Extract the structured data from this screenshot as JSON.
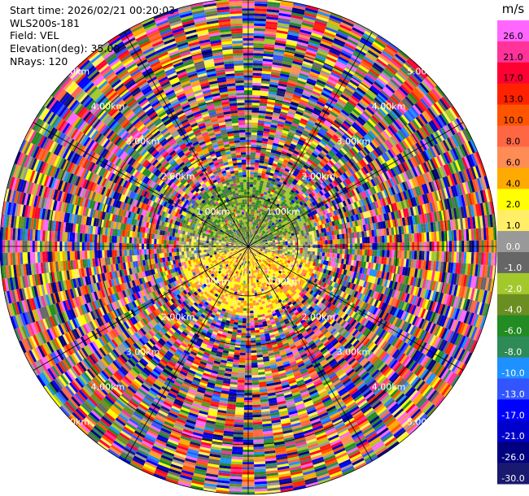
{
  "header": {
    "start_time": "Start time: 2026/02/21 00:20:03",
    "instrument": "WLS200s-181",
    "field": "Field: VEL",
    "elevation": "Elevation(deg): 35.00",
    "nrays": "NRays: 120"
  },
  "chart_data": {
    "type": "ppi",
    "title": "",
    "field": "VEL",
    "unit": "m/s",
    "nrays": 120,
    "elevation_deg": 35.0,
    "max_range_km": 5.0,
    "range_ring_labels": [
      "1.00km",
      "2.00km",
      "3.00km",
      "4.00km",
      "5.00km"
    ],
    "range_rings_km": [
      1,
      2,
      3,
      4,
      5
    ],
    "colorbar": {
      "label": "m/s",
      "ticks": [
        "26.0",
        "21.0",
        "17.0",
        "13.0",
        "10.0",
        "8.0",
        "6.0",
        "4.0",
        "2.0",
        "1.0",
        "0.0",
        "-1.0",
        "-2.0",
        "-4.0",
        "-6.0",
        "-8.0",
        "-10.0",
        "-13.0",
        "-17.0",
        "-21.0",
        "-26.0",
        "-30.0"
      ],
      "colors": [
        "#ff66ff",
        "#ff3399",
        "#ff0033",
        "#ff2200",
        "#ff5500",
        "#ff6644",
        "#ff8c55",
        "#ffaa00",
        "#ffff00",
        "#ffee66",
        "#999999",
        "#666666",
        "#a3c82c",
        "#6b8e23",
        "#228b22",
        "#2e8b57",
        "#1e90ff",
        "#3355ff",
        "#0000ff",
        "#0000cc",
        "#000080",
        "#191970"
      ]
    },
    "pattern": {
      "inner_signal_radius_km": 1.45,
      "north_half": "negative velocities (greens, approx -1 to -6 m/s)",
      "south_half": "positive velocities (yellows/orange, approx 2 to 6 m/s)",
      "beyond": "noise across full colour scale"
    }
  }
}
